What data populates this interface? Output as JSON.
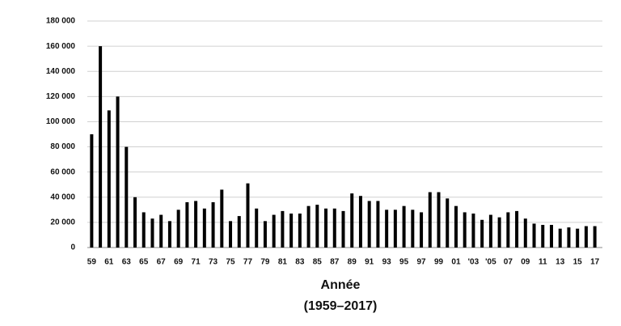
{
  "chart_data": {
    "type": "bar",
    "x_label": "Année",
    "x_sublabel": "(1959–2017)",
    "categories": [
      "59",
      null,
      "61",
      null,
      "63",
      null,
      "65",
      null,
      "67",
      null,
      "69",
      null,
      "71",
      null,
      "73",
      null,
      "75",
      null,
      "77",
      null,
      "79",
      null,
      "81",
      null,
      "83",
      null,
      "85",
      null,
      "87",
      null,
      "89",
      null,
      "91",
      null,
      "93",
      null,
      "95",
      null,
      "97",
      null,
      "99",
      null,
      "01",
      null,
      "'03",
      null,
      "'05",
      null,
      "07",
      null,
      "09",
      null,
      "11",
      null,
      "13",
      null,
      "15",
      null,
      "17"
    ],
    "values": [
      90000,
      160000,
      109000,
      120000,
      80000,
      40000,
      28000,
      23000,
      26000,
      21000,
      30000,
      36000,
      37000,
      31000,
      36000,
      46000,
      21000,
      25000,
      51000,
      31000,
      21000,
      26000,
      29000,
      27000,
      27000,
      33000,
      34000,
      31000,
      31000,
      29000,
      43000,
      41000,
      37000,
      37000,
      30000,
      30000,
      33000,
      30000,
      28000,
      44000,
      44000,
      39000,
      33000,
      28000,
      27000,
      22000,
      26000,
      24000,
      28000,
      29000,
      23000,
      19000,
      18000,
      18000,
      15000,
      16000,
      15000,
      17000,
      17000
    ],
    "color": "#000000",
    "ylim": [
      0,
      180000
    ],
    "yticks": [
      0,
      {
        "value": 20000,
        "label": "20 000"
      },
      {
        "value": 40000,
        "label": "40 000"
      },
      {
        "value": 60000,
        "label": "60 000"
      },
      {
        "value": 80000,
        "label": "80 000"
      },
      {
        "value": 100000,
        "label": "100 000"
      },
      {
        "value": 120000,
        "label": "120 000"
      },
      {
        "value": 140000,
        "label": "140 000"
      },
      {
        "value": 160000,
        "label": "160 000"
      },
      {
        "value": 180000,
        "label": "180 000"
      }
    ],
    "grid": true
  }
}
